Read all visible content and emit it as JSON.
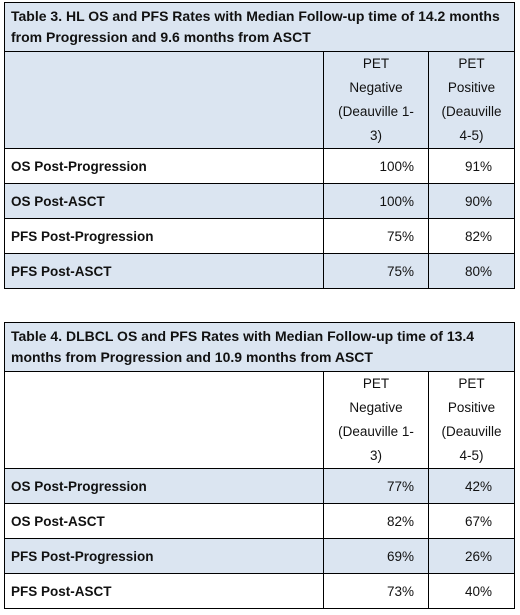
{
  "tables": [
    {
      "title": "Table 3. HL OS and PFS Rates with Median Follow-up time of 14.2 months from Progression and 9.6 months from ASCT",
      "col_headers": [
        [
          "PET",
          "Negative",
          "(Deauville 1-",
          "3)"
        ],
        [
          "PET",
          "Positive",
          "(Deauville",
          "4-5)"
        ]
      ],
      "rows": [
        {
          "label": "OS Post-Progression",
          "neg": "100%",
          "pos": "91%"
        },
        {
          "label": "OS Post-ASCT",
          "neg": "100%",
          "pos": "90%"
        },
        {
          "label": "PFS Post-Progression",
          "neg": "75%",
          "pos": "82%"
        },
        {
          "label": "PFS Post-ASCT",
          "neg": "75%",
          "pos": "80%"
        }
      ]
    },
    {
      "title": "Table 4. DLBCL OS and PFS Rates with Median Follow-up time of 13.4 months from Progression and 10.9 months from ASCT",
      "col_headers": [
        [
          "PET",
          "Negative",
          "(Deauville 1-",
          "3)"
        ],
        [
          "PET",
          "Positive",
          "(Deauville",
          "4-5)"
        ]
      ],
      "rows": [
        {
          "label": "OS Post-Progression",
          "neg": "77%",
          "pos": "42%"
        },
        {
          "label": "OS Post-ASCT",
          "neg": "82%",
          "pos": "67%"
        },
        {
          "label": "PFS Post-Progression",
          "neg": "69%",
          "pos": "26%"
        },
        {
          "label": "PFS Post-ASCT",
          "neg": "73%",
          "pos": "40%"
        }
      ]
    }
  ],
  "colors": {
    "shade": "#dbe5f1",
    "border": "#000000"
  }
}
